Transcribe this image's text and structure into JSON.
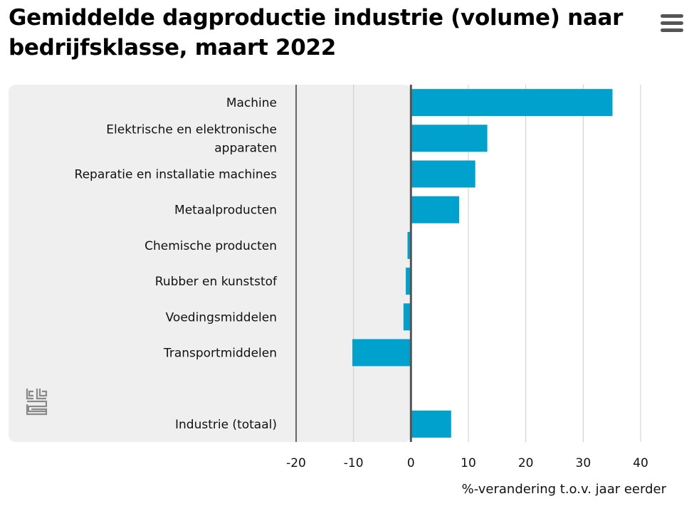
{
  "title": "Gemiddelde dagproductie industrie (volume) naar bedrijfsklasse, maart 2022",
  "menu_icon": "hamburger-menu-icon",
  "logo_icon": "cbs-logo-icon",
  "colors": {
    "bar": "#00a1cd",
    "panel": "#efefef",
    "axis": "#666666",
    "grid": "#cccccc"
  },
  "chart_data": {
    "type": "bar",
    "orientation": "horizontal",
    "title": "Gemiddelde dagproductie industrie (volume) naar bedrijfsklasse, maart 2022",
    "xlabel": "%-verandering t.o.v. jaar eerder",
    "ylabel": "",
    "xlim": [
      -20,
      40
    ],
    "xticks": [
      -20,
      -10,
      0,
      10,
      20,
      30,
      40
    ],
    "grid": true,
    "categories": [
      [
        "Machine"
      ],
      [
        "Elektrische en elektronische",
        "apparaten"
      ],
      [
        "Reparatie en installatie machines"
      ],
      [
        "Metaalproducten"
      ],
      [
        "Chemische producten"
      ],
      [
        "Rubber en kunststof"
      ],
      [
        "Voedingsmiddelen"
      ],
      [
        "Transportmiddelen"
      ],
      [],
      [
        "Industrie (totaal)"
      ]
    ],
    "values": [
      35.1,
      13.3,
      11.2,
      8.4,
      -0.6,
      -0.9,
      -1.3,
      -10.2,
      null,
      7.0
    ]
  }
}
